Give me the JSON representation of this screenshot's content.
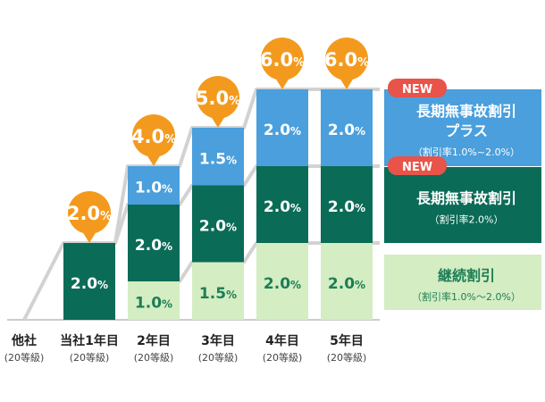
{
  "chart_data": {
    "type": "bar",
    "stacked": true,
    "unit": "%",
    "categories": [
      {
        "label": "他社",
        "sub": "(20等級)"
      },
      {
        "label": "当社1年目",
        "sub": "(20等級)"
      },
      {
        "label": "2年目",
        "sub": "(20等級)"
      },
      {
        "label": "3年目",
        "sub": "(20等級)"
      },
      {
        "label": "4年目",
        "sub": "(20等級)"
      },
      {
        "label": "5年目",
        "sub": "(20等級)"
      }
    ],
    "series": [
      {
        "name": "継続割引",
        "color": "#d4edc3",
        "values": [
          0,
          0,
          1.0,
          1.5,
          2.0,
          2.0
        ]
      },
      {
        "name": "長期無事故割引",
        "color": "#0a6b57",
        "values": [
          0,
          2.0,
          2.0,
          2.0,
          2.0,
          2.0
        ]
      },
      {
        "name": "長期無事故割引プラス",
        "color": "#4a9fdc",
        "values": [
          0,
          0,
          1.0,
          1.5,
          2.0,
          2.0
        ]
      }
    ],
    "totals": [
      0,
      2.0,
      4.0,
      5.0,
      6.0,
      6.0
    ],
    "legend": [
      {
        "title": [
          "長期無事故割引",
          "プラス"
        ],
        "sub": "（割引率1.0%~2.0%）",
        "badge": "NEW",
        "color": "#4a9fdc",
        "text_color": "#ffffff"
      },
      {
        "title": [
          "長期無事故割引"
        ],
        "sub": "（割引率2.0%）",
        "badge": "NEW",
        "color": "#0a6b57",
        "text_color": "#ffffff"
      },
      {
        "title": [
          "継続割引"
        ],
        "sub": "（割引率1.0%～2.0%）",
        "badge": "",
        "color": "#d4edc3",
        "text_color": "#1e7d55"
      }
    ],
    "bubble_color": "#f39a1e",
    "badge_color": "#e8534a"
  }
}
